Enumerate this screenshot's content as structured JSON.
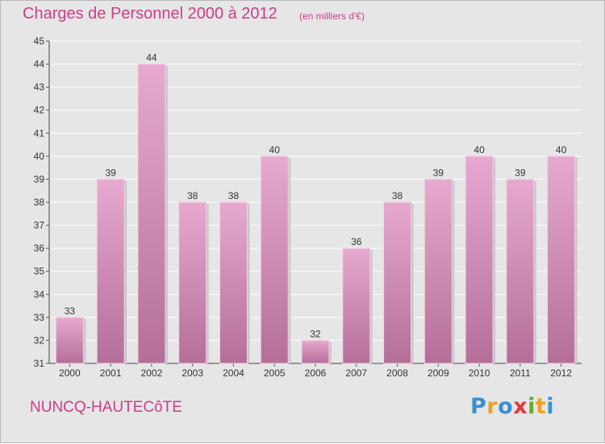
{
  "header": {
    "title": "Charges de Personnel 2000 à 2012",
    "subtitle": "(en milliers d'€)"
  },
  "footer": {
    "commune": "NUNCQ-HAUTECôTE",
    "logo_text": "Proxiti"
  },
  "colors": {
    "accent": "#cc3d8a",
    "bar_top": "#e7a9cf",
    "bar_bottom": "#b46f99",
    "background": "#e6e6e6",
    "logo": [
      "#3a8fd0",
      "#f0a020",
      "#3a8fd0",
      "#e23b3b",
      "#6aa82f",
      "#f0a020",
      "#3a8fd0"
    ]
  },
  "chart_data": {
    "type": "bar",
    "categories": [
      "2000",
      "2001",
      "2002",
      "2003",
      "2004",
      "2005",
      "2006",
      "2007",
      "2008",
      "2009",
      "2010",
      "2011",
      "2012"
    ],
    "values": [
      33,
      39,
      44,
      38,
      38,
      40,
      32,
      36,
      38,
      39,
      40,
      39,
      40
    ],
    "ylim": [
      31,
      45
    ],
    "yticks": [
      31,
      32,
      33,
      34,
      35,
      36,
      37,
      38,
      39,
      40,
      41,
      42,
      43,
      44,
      45
    ],
    "grid": true,
    "xlabel": "",
    "ylabel": ""
  }
}
